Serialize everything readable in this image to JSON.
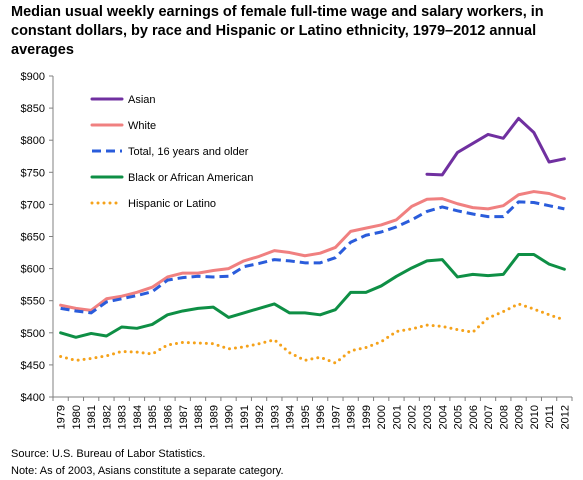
{
  "chart_data": {
    "type": "line",
    "title": "Median usual weekly earnings of  female full-time wage and salary workers, in constant dollars, by race and Hispanic or Latino ethnicity, 1979–2012 annual averages",
    "xlabel": "",
    "ylabel": "",
    "ylim": [
      400,
      900
    ],
    "y_ticks": [
      400,
      450,
      500,
      550,
      600,
      650,
      700,
      750,
      800,
      850,
      900
    ],
    "y_tick_labels": [
      "$400",
      "$450",
      "$500",
      "$550",
      "$600",
      "$650",
      "$700",
      "$750",
      "$800",
      "$850",
      "$900"
    ],
    "grid": false,
    "legend_position": "top-left",
    "x": [
      "1979",
      "1980",
      "1981",
      "1982",
      "1983",
      "1984",
      "1985",
      "1986",
      "1987",
      "1988",
      "1989",
      "1990",
      "1991",
      "1992",
      "1993",
      "1994",
      "1995",
      "1996",
      "1997",
      "1998",
      "1999",
      "2000",
      "2001",
      "2002",
      "2003",
      "2004",
      "2005",
      "2006",
      "2007",
      "2008",
      "2009",
      "2010",
      "2011",
      "2012"
    ],
    "series": [
      {
        "name": "Asian",
        "color": "#7030a0",
        "dash": "solid",
        "values": [
          null,
          null,
          null,
          null,
          null,
          null,
          null,
          null,
          null,
          null,
          null,
          null,
          null,
          null,
          null,
          null,
          null,
          null,
          null,
          null,
          null,
          null,
          null,
          null,
          747,
          746,
          781,
          795,
          809,
          803,
          834,
          812,
          766,
          771
        ]
      },
      {
        "name": "White",
        "color": "#f08080",
        "dash": "solid",
        "values": [
          543,
          538,
          535,
          553,
          557,
          563,
          571,
          587,
          593,
          593,
          597,
          600,
          612,
          619,
          628,
          625,
          620,
          624,
          633,
          658,
          663,
          668,
          676,
          697,
          708,
          709,
          701,
          695,
          693,
          698,
          715,
          720,
          717,
          709
        ]
      },
      {
        "name": "Total, 16 years and older",
        "color": "#2a5cdb",
        "dash": "dash",
        "values": [
          538,
          534,
          531,
          548,
          553,
          558,
          564,
          582,
          586,
          588,
          587,
          588,
          603,
          608,
          614,
          612,
          609,
          609,
          617,
          641,
          652,
          657,
          665,
          676,
          689,
          696,
          690,
          685,
          681,
          681,
          704,
          703,
          698,
          693
        ]
      },
      {
        "name": "Black or African American",
        "color": "#0e8f45",
        "dash": "solid",
        "values": [
          500,
          493,
          499,
          495,
          509,
          507,
          513,
          528,
          534,
          538,
          540,
          524,
          531,
          538,
          545,
          531,
          531,
          528,
          536,
          563,
          563,
          573,
          588,
          601,
          612,
          614,
          587,
          591,
          589,
          591,
          622,
          622,
          607,
          599
        ]
      },
      {
        "name": "Hispanic or Latino",
        "color": "#f5a21a",
        "dash": "dot",
        "values": [
          463,
          457,
          460,
          464,
          471,
          470,
          467,
          481,
          485,
          484,
          483,
          475,
          478,
          483,
          489,
          469,
          457,
          462,
          453,
          472,
          477,
          486,
          502,
          506,
          512,
          510,
          505,
          501,
          523,
          533,
          545,
          537,
          528,
          520
        ]
      }
    ]
  },
  "notes": {
    "source": "Source: U.S. Bureau of Labor Statistics.",
    "note": "Note: As of 2003, Asians constitute a separate category."
  }
}
